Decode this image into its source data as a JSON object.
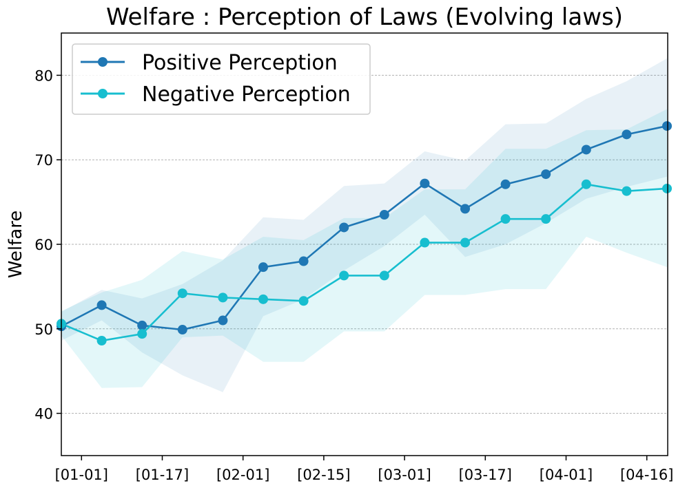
{
  "chart_data": {
    "type": "line",
    "title": "Welfare : Perception of Laws (Evolving laws)",
    "xlabel": "",
    "ylabel": "Welfare",
    "ylim": [
      35,
      85
    ],
    "x_tick_labels": [
      "[01-01]",
      "[01-17]",
      "[02-01]",
      "[02-15]",
      "[03-01]",
      "[03-17]",
      "[04-01]",
      "[04-16]"
    ],
    "y_ticks": [
      40,
      50,
      60,
      70,
      80
    ],
    "grid": "horizontal dashed",
    "legend_position": "top-left",
    "series": [
      {
        "name": "Positive Perception",
        "color": "#1f77b4",
        "values": [
          50.3,
          52.8,
          50.4,
          49.9,
          51.0,
          57.3,
          58.0,
          62.0,
          63.5,
          67.2,
          64.2,
          67.1,
          68.3,
          71.2,
          73.0,
          74.0
        ],
        "band_lower": [
          48.6,
          51.0,
          47.2,
          44.5,
          42.5,
          51.5,
          53.5,
          56.9,
          59.8,
          63.5,
          58.5,
          60.0,
          62.5,
          65.4,
          66.8,
          68.0
        ],
        "band_upper": [
          52.0,
          54.6,
          53.6,
          55.3,
          58.1,
          63.2,
          62.9,
          66.9,
          67.2,
          71.0,
          69.9,
          74.2,
          74.3,
          77.2,
          79.3,
          82.0
        ]
      },
      {
        "name": "Negative Perception",
        "color": "#17becf",
        "values": [
          50.6,
          48.6,
          49.4,
          54.2,
          53.7,
          53.5,
          53.3,
          56.3,
          56.3,
          60.2,
          60.2,
          63.0,
          63.0,
          67.1,
          66.3,
          66.6
        ],
        "band_lower": [
          49.2,
          43.0,
          43.1,
          49.0,
          49.2,
          46.1,
          46.1,
          49.7,
          49.7,
          54.0,
          54.0,
          54.7,
          54.7,
          60.9,
          59.0,
          57.3
        ],
        "band_upper": [
          52.1,
          54.3,
          55.8,
          59.2,
          58.2,
          60.9,
          60.5,
          63.1,
          63.1,
          66.5,
          66.5,
          71.3,
          71.3,
          73.5,
          73.6,
          76.0
        ]
      }
    ]
  }
}
